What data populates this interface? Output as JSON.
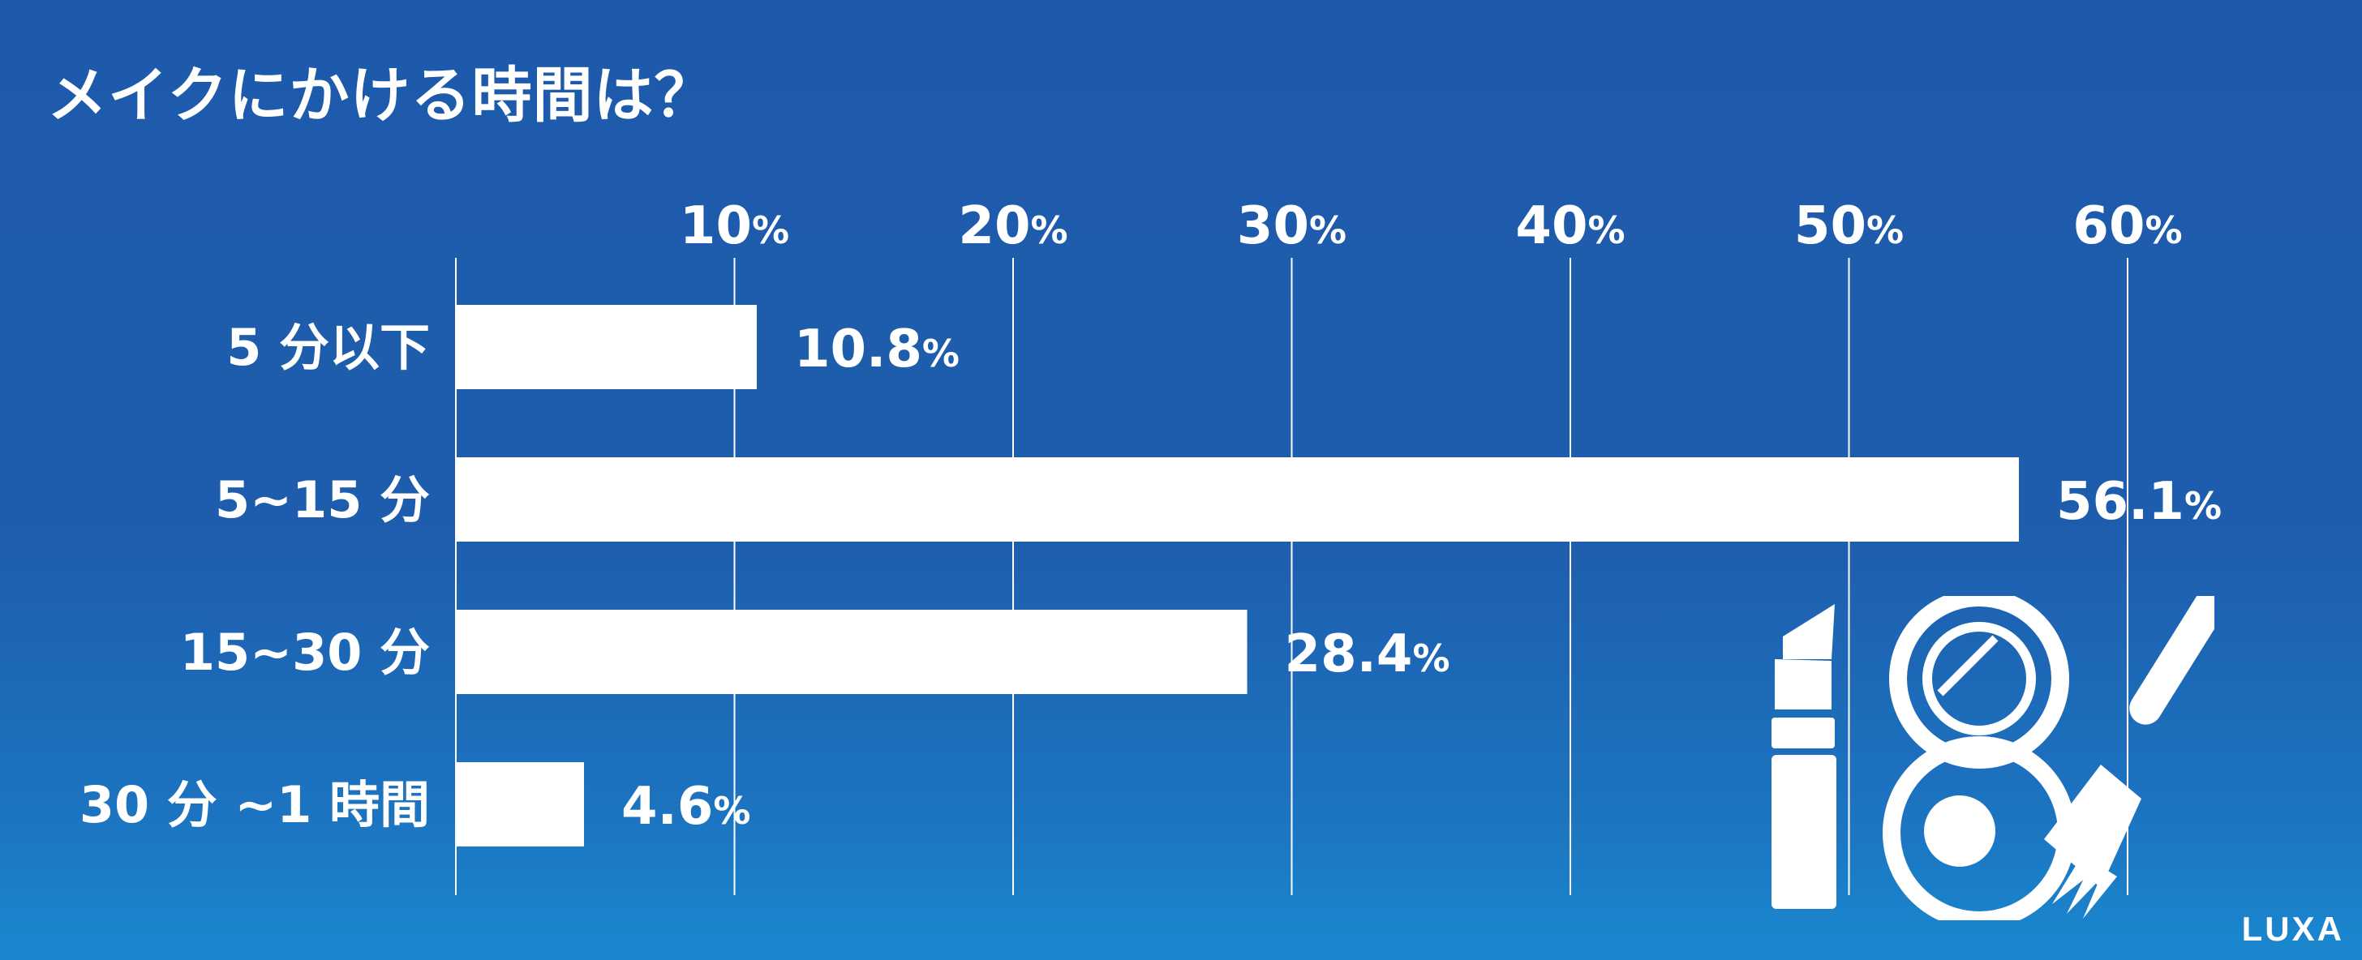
{
  "title": "メイクにかける時間は？",
  "brand": "LUXA",
  "colors": {
    "background": "#1e5dad",
    "bar": "#ffffff",
    "text": "#ffffff",
    "grid": "#ffffff"
  },
  "icons": [
    "lipstick-icon",
    "compact-mirror-icon",
    "makeup-brush-icon"
  ],
  "chart_data": {
    "type": "bar",
    "orientation": "horizontal",
    "categories": [
      "5 分以下",
      "5~15 分",
      "15~30 分",
      "30 分 ~1 時間"
    ],
    "values": [
      10.8,
      56.1,
      28.4,
      4.6
    ],
    "value_unit": "%",
    "ticks": [
      10,
      20,
      30,
      40,
      50,
      60
    ],
    "xlim": [
      0,
      60
    ],
    "axis_position": "top",
    "grid": true,
    "legend": "none"
  }
}
